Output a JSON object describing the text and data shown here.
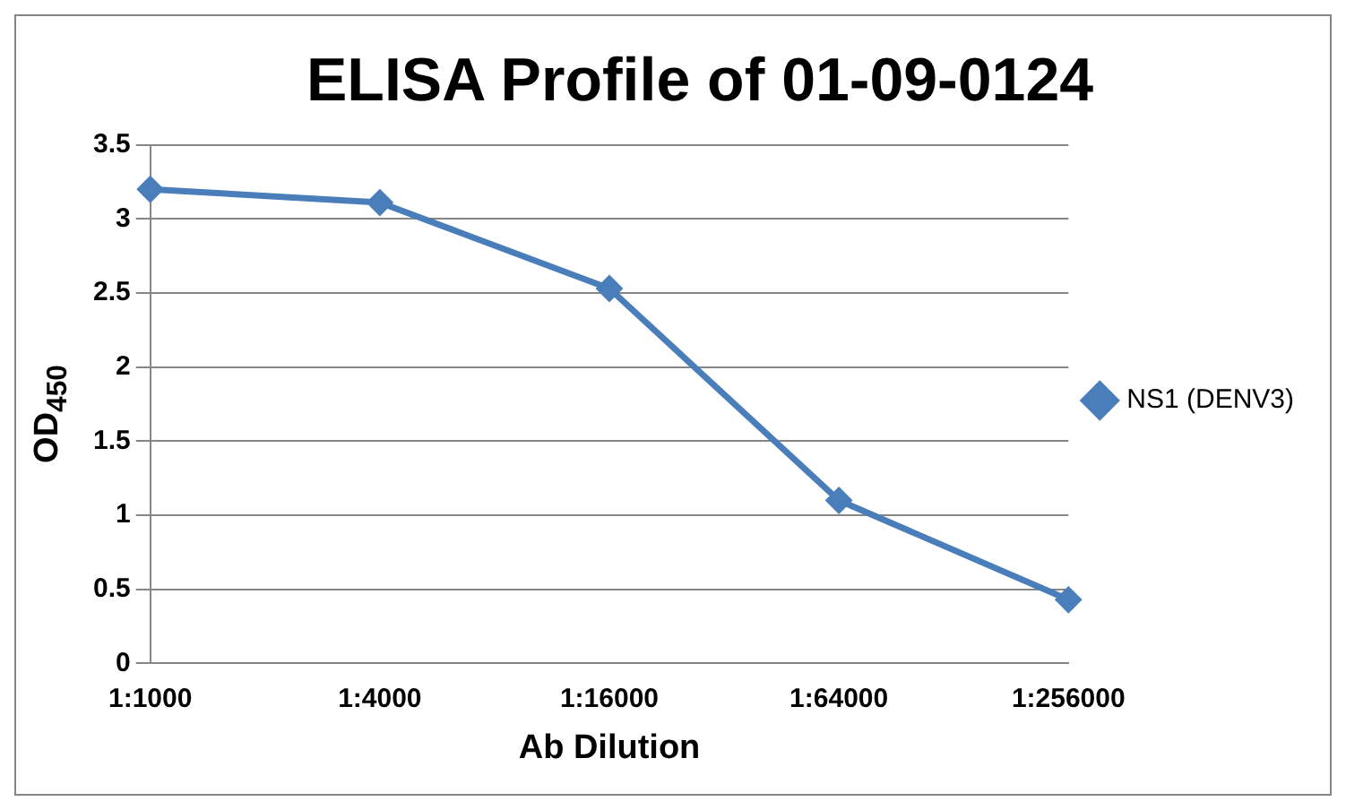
{
  "chart_data": {
    "type": "line",
    "title": "ELISA Profile of 01-09-0124",
    "xlabel": "Ab Dilution",
    "ylabel": "OD$_{450}$",
    "categories": [
      "1:1000",
      "1:4000",
      "1:16000",
      "1:64000",
      "1:256000"
    ],
    "series": [
      {
        "name": "NS1 (DENV3)",
        "color": "#4a7ebb",
        "values": [
          3.2,
          3.11,
          2.53,
          1.1,
          0.43
        ]
      }
    ],
    "ylim": [
      0,
      3.5
    ],
    "yticks": [
      0,
      0.5,
      1,
      1.5,
      2,
      2.5,
      3,
      3.5
    ],
    "grid": "y",
    "legend": "right",
    "marker": "diamond",
    "line_style": "solid"
  }
}
